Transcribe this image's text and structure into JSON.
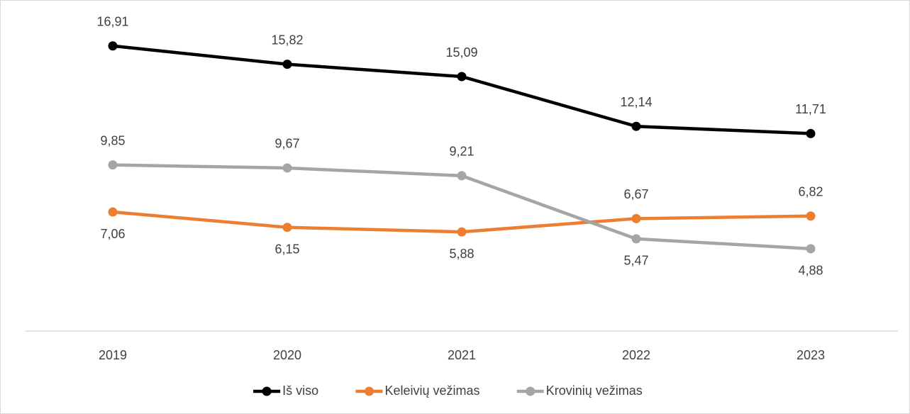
{
  "chart_data": {
    "type": "line",
    "categories": [
      "2019",
      "2020",
      "2021",
      "2022",
      "2023"
    ],
    "ylim": [
      0,
      19
    ],
    "series": [
      {
        "name": "Iš viso",
        "color": "#000000",
        "values": [
          16.91,
          15.82,
          15.09,
          12.14,
          11.71
        ],
        "value_labels": [
          "16,91",
          "15,82",
          "15,09",
          "12,14",
          "11,71"
        ]
      },
      {
        "name": "Keleivių vežimas",
        "color": "#ed7d31",
        "values": [
          7.06,
          6.15,
          5.88,
          6.67,
          6.82
        ],
        "value_labels": [
          "7,06",
          "6,15",
          "5,88",
          "6,67",
          "6,82"
        ]
      },
      {
        "name": "Krovinių vežimas",
        "color": "#a5a5a5",
        "values": [
          9.85,
          9.67,
          9.21,
          5.47,
          4.88
        ],
        "value_labels": [
          "9,85",
          "9,67",
          "9,21",
          "5,47",
          "4,88"
        ]
      }
    ]
  }
}
